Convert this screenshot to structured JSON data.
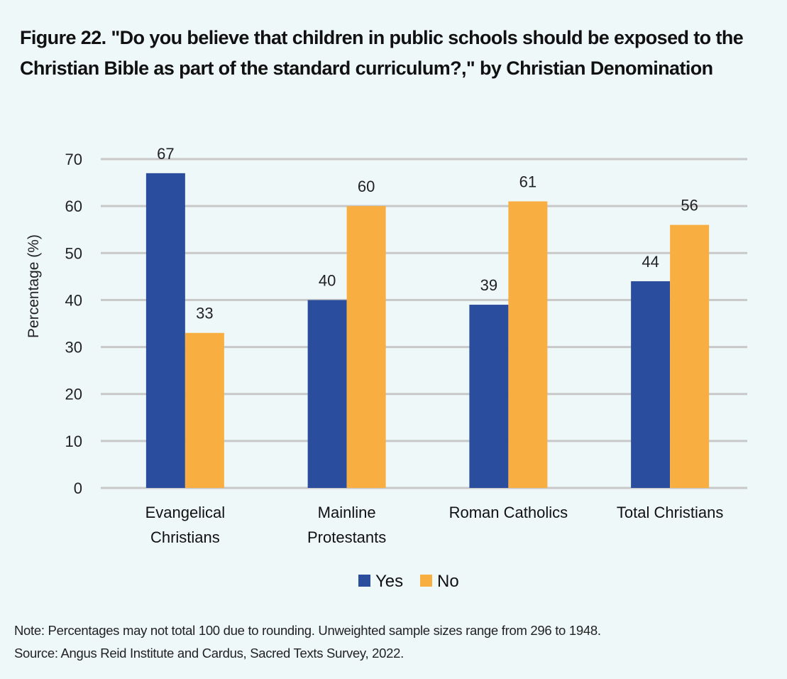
{
  "title": "Figure 22. \"Do you believe that children in public schools should be exposed to the Christian Bible as part of the standard curriculum?,\" by Christian Denomination",
  "chart_data": {
    "type": "bar",
    "title": "Figure 22. \"Do you believe that children in public schools should be exposed to the Christian Bible as part of the standard curriculum?,\" by Christian Denomination",
    "xlabel": "",
    "ylabel": "Percentage (%)",
    "ylim": [
      0,
      70
    ],
    "yticks": [
      0,
      10,
      20,
      30,
      40,
      50,
      60,
      70
    ],
    "grid": true,
    "legend_position": "bottom",
    "categories": [
      [
        "Evangelical",
        "Christians"
      ],
      [
        "Mainline",
        "Protestants"
      ],
      [
        "Roman Catholics"
      ],
      [
        "Total Christians"
      ]
    ],
    "series": [
      {
        "name": "Yes",
        "color": "#2b4d9e",
        "values": [
          67,
          40,
          39,
          44
        ]
      },
      {
        "name": "No",
        "color": "#f9ae41",
        "values": [
          33,
          60,
          61,
          56
        ]
      }
    ]
  },
  "notes": {
    "note": "Note: Percentages may not total 100 due to rounding. Unweighted sample sizes range from 296 to 1948.",
    "source": "Source: Angus Reid Institute and Cardus, Sacred Texts Survey, 2022."
  }
}
